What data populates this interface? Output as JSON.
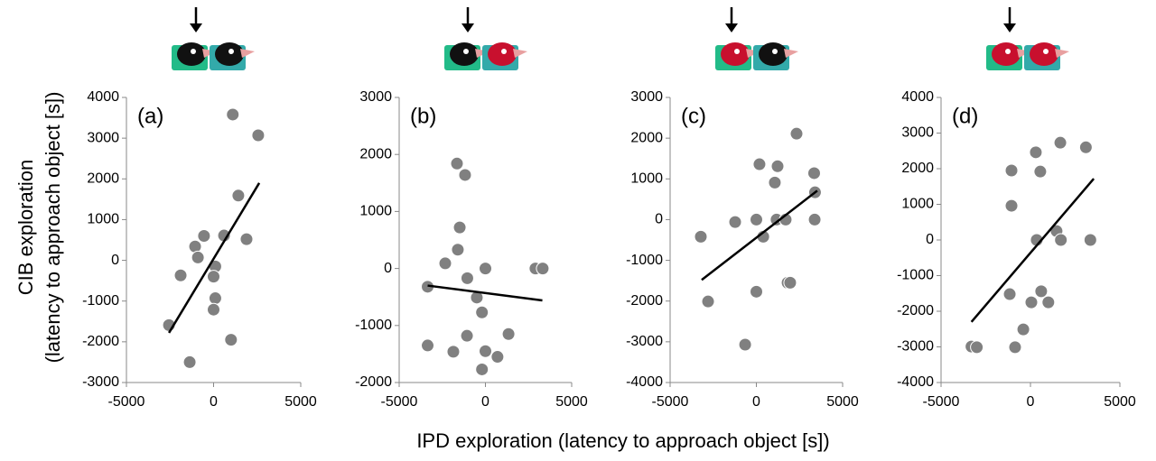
{
  "ylabel": [
    "CIB exploration",
    "(latency to approach object [s])"
  ],
  "xlabel": "IPD exploration (latency to approach object [s])",
  "chart_data": [
    {
      "type": "scatter",
      "label": "(a)",
      "xlim": [
        -5000,
        5000
      ],
      "xticks": [
        -5000,
        0,
        5000
      ],
      "ylim": [
        -3000,
        4000
      ],
      "yticks": [
        -3000,
        -2000,
        -1000,
        0,
        1000,
        2000,
        3000,
        4000
      ],
      "color": "#808080",
      "x": [
        1100,
        2560,
        1420,
        -550,
        600,
        1890,
        -1060,
        -900,
        -1890,
        100,
        0,
        100,
        0,
        1000,
        -2560,
        -1370
      ],
      "values": [
        3580,
        3070,
        1590,
        600,
        610,
        520,
        340,
        70,
        -370,
        -150,
        -400,
        -930,
        -1210,
        -1950,
        -1590,
        -2500
      ],
      "trendline": {
        "x": [
          -2560,
          2620
        ],
        "values": [
          -1780,
          1900
        ]
      }
    },
    {
      "type": "scatter",
      "label": "(b)",
      "xlim": [
        -5000,
        5000
      ],
      "xticks": [
        -5000,
        0,
        5000
      ],
      "ylim": [
        -2000,
        3000
      ],
      "yticks": [
        -2000,
        -1000,
        0,
        1000,
        2000,
        3000
      ],
      "color": "#808080",
      "x": [
        -1650,
        -1180,
        -1490,
        -1600,
        -2330,
        0,
        -1050,
        -3350,
        -500,
        -200,
        -1070,
        1340,
        -3350,
        -1860,
        0,
        700,
        -200,
        2900,
        3320
      ],
      "values": [
        1840,
        1640,
        720,
        330,
        90,
        0,
        -170,
        -320,
        -510,
        -770,
        -1180,
        -1150,
        -1350,
        -1460,
        -1450,
        -1550,
        -1770,
        0,
        0
      ],
      "trendline": {
        "x": [
          -3350,
          3300
        ],
        "values": [
          -300,
          -560
        ]
      }
    },
    {
      "type": "scatter",
      "label": "(c)",
      "xlim": [
        -5000,
        5000
      ],
      "xticks": [
        -5000,
        0,
        5000
      ],
      "ylim": [
        -4000,
        3000
      ],
      "yticks": [
        -4000,
        -3000,
        -2000,
        -1000,
        0,
        1000,
        2000,
        3000
      ],
      "color": "#808080",
      "x": [
        2330,
        180,
        1230,
        3350,
        1070,
        3400,
        -1230,
        0,
        1170,
        1700,
        3380,
        400,
        -3220,
        0,
        1810,
        1960,
        -2800,
        -650
      ],
      "values": [
        2110,
        1360,
        1310,
        1140,
        910,
        670,
        -60,
        0,
        0,
        0,
        0,
        -420,
        -420,
        -1770,
        -1550,
        -1550,
        -2010,
        -3070
      ],
      "trendline": {
        "x": [
          -3170,
          3530
        ],
        "values": [
          -1480,
          710
        ]
      }
    },
    {
      "type": "scatter",
      "label": "(d)",
      "xlim": [
        -5000,
        5000
      ],
      "xticks": [
        -5000,
        0,
        5000
      ],
      "ylim": [
        -4000,
        4000
      ],
      "yticks": [
        -4000,
        -3000,
        -2000,
        -1000,
        0,
        1000,
        2000,
        3000,
        4000
      ],
      "color": "#808080",
      "x": [
        -1060,
        300,
        1670,
        3100,
        550,
        -1060,
        350,
        1460,
        1700,
        3350,
        -1160,
        600,
        50,
        1000,
        -400,
        -3300,
        -3000,
        -860
      ],
      "values": [
        1950,
        2460,
        2730,
        2600,
        1920,
        960,
        0,
        250,
        0,
        0,
        -1520,
        -1440,
        -1750,
        -1750,
        -2510,
        -2990,
        -3010,
        -3010
      ],
      "trendline": {
        "x": [
          -3300,
          3540
        ],
        "values": [
          -2300,
          1720
        ]
      }
    }
  ]
}
